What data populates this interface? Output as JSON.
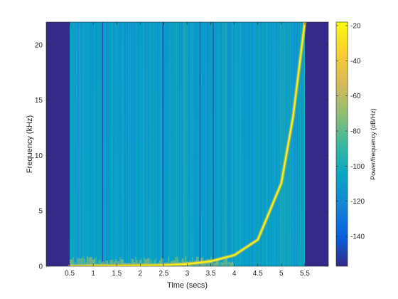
{
  "chart_data": {
    "type": "heatmap",
    "title": "",
    "xlabel": "Time (secs)",
    "ylabel": "Frequency (kHz)",
    "colorbar_label": "Power/frequency (dB/Hz)",
    "xlim": [
      0,
      6.0
    ],
    "ylim": [
      0,
      22.05
    ],
    "x_ticks": [
      0.5,
      1,
      1.5,
      2,
      2.5,
      3,
      3.5,
      4,
      4.5,
      5,
      5.5
    ],
    "x_tick_labels": [
      "0.5",
      "1",
      "1.5",
      "2",
      "2.5",
      "3",
      "3.5",
      "4",
      "4.5",
      "5",
      "5.5"
    ],
    "y_ticks": [
      0,
      5,
      10,
      15,
      20
    ],
    "y_tick_labels": [
      "0",
      "5",
      "10",
      "15",
      "20"
    ],
    "clim": [
      -157,
      -18
    ],
    "colorbar_ticks": [
      -140,
      -120,
      -100,
      -80,
      -60,
      -40,
      -20
    ],
    "colorbar_tick_labels": [
      "-140",
      "-120",
      "-100",
      "-80",
      "-60",
      "-40",
      "-20"
    ],
    "data_time_range": [
      0.5,
      5.5
    ],
    "background_level_db": -107,
    "empty_level_db": -157,
    "colormap": "parula",
    "colormap_stops": [
      "#352a87",
      "#0363e1",
      "#1485d4",
      "#06a7c6",
      "#38b99e",
      "#92bf73",
      "#d9ba56",
      "#fcce2e",
      "#f9fb0e"
    ],
    "dark_streak_times": [
      1.2,
      2.48,
      3.27,
      3.55
    ],
    "tone_curve": {
      "description": "exponential chirp",
      "points": [
        {
          "t": 0.5,
          "f": 0.0
        },
        {
          "t": 2.5,
          "f": 0.1
        },
        {
          "t": 3.0,
          "f": 0.2
        },
        {
          "t": 3.5,
          "f": 0.45
        },
        {
          "t": 4.0,
          "f": 1.0
        },
        {
          "t": 4.5,
          "f": 2.4
        },
        {
          "t": 5.0,
          "f": 7.5
        },
        {
          "t": 5.25,
          "f": 13.5
        },
        {
          "t": 5.5,
          "f": 22.05
        }
      ],
      "level_db": -22
    }
  }
}
